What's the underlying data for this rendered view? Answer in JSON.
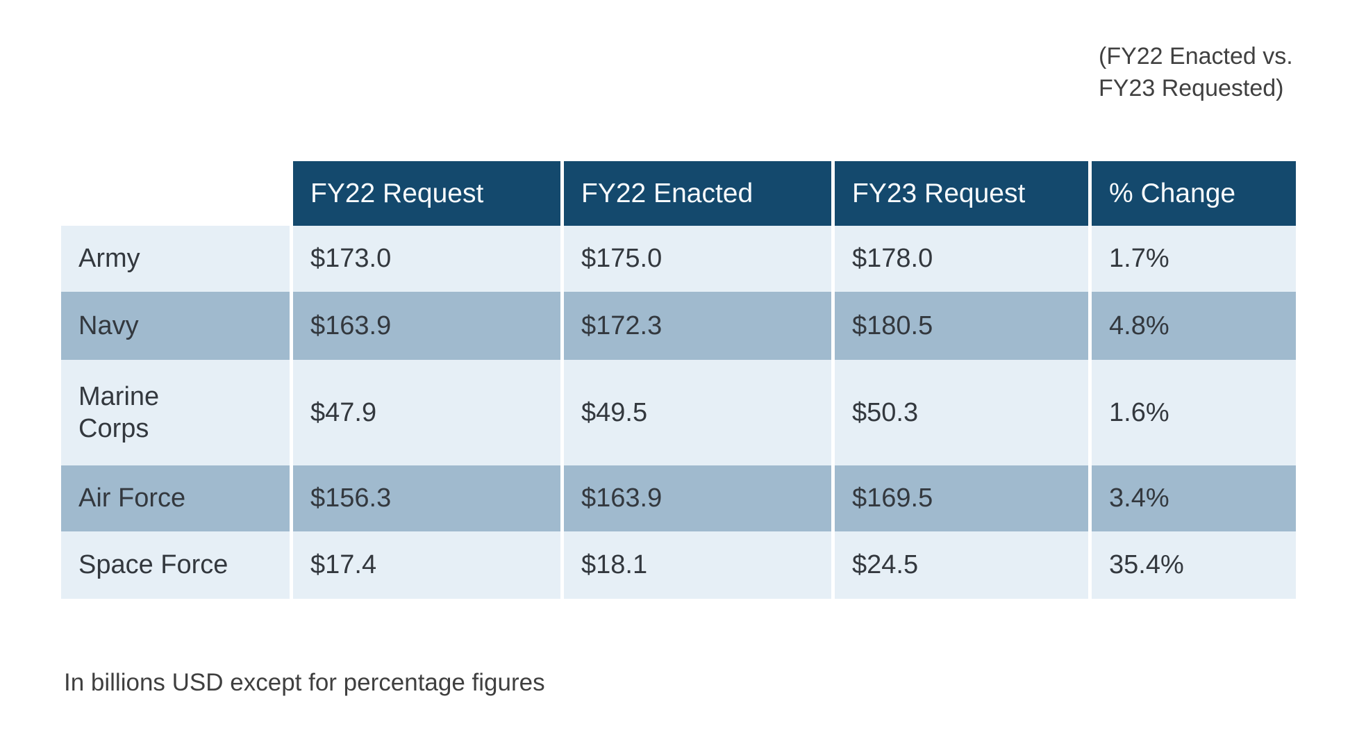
{
  "annotation": {
    "line1": "(FY22 Enacted vs.",
    "line2": "FY23 Requested)"
  },
  "table": {
    "columns": [
      "FY22 Request",
      "FY22 Enacted",
      "FY23 Request",
      "% Change"
    ],
    "rows": [
      {
        "label": "Army",
        "cells": [
          "$173.0",
          "$175.0",
          "$178.0",
          "1.7%"
        ]
      },
      {
        "label": "Navy",
        "cells": [
          "$163.9",
          "$172.3",
          "$180.5",
          "4.8%"
        ]
      },
      {
        "label": "Marine\nCorps",
        "cells": [
          "$47.9",
          "$49.5",
          "$50.3",
          "1.6%"
        ]
      },
      {
        "label": "Air Force",
        "cells": [
          "$156.3",
          "$163.9",
          "$169.5",
          "3.4%"
        ]
      },
      {
        "label": "Space Force",
        "cells": [
          "$17.4",
          "$18.1",
          "$24.5",
          "35.4%"
        ]
      }
    ]
  },
  "footnote": "In billions USD except for percentage figures",
  "colors": {
    "header_bg": "#14496d",
    "row_light": "#e6eff6",
    "row_dark": "#a0bace",
    "header_text": "#f8fbfd",
    "body_text": "#33383e",
    "note_text": "#3f3f3f"
  },
  "chart_data": {
    "type": "table",
    "title": "",
    "note": "(FY22 Enacted vs. FY23 Requested)",
    "units": "billions USD except for percentage figures",
    "categories": [
      "Army",
      "Navy",
      "Marine Corps",
      "Air Force",
      "Space Force"
    ],
    "series": [
      {
        "name": "FY22 Request",
        "values": [
          173.0,
          163.9,
          47.9,
          156.3,
          17.4
        ]
      },
      {
        "name": "FY22 Enacted",
        "values": [
          175.0,
          172.3,
          49.5,
          163.9,
          18.1
        ]
      },
      {
        "name": "FY23 Request",
        "values": [
          178.0,
          180.5,
          50.3,
          169.5,
          24.5
        ]
      },
      {
        "name": "% Change",
        "values": [
          1.7,
          4.8,
          1.6,
          3.4,
          35.4
        ]
      }
    ]
  }
}
